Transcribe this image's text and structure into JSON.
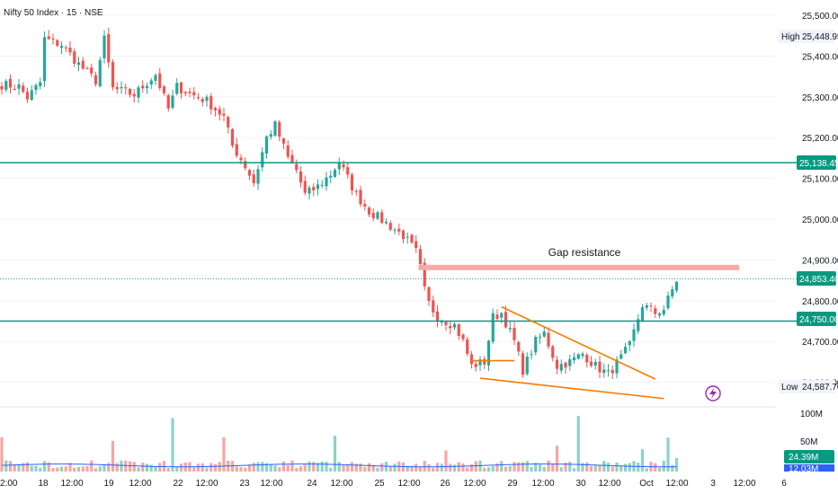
{
  "header": {
    "title": "Nifty 50 Index · 15 · NSE"
  },
  "colors": {
    "up": "#26a69a",
    "down": "#ef5350",
    "level": "#089981",
    "gap_zone": "#f7a9a7",
    "trendline": "#f57c00",
    "vol_ma": "#2962ff",
    "price_tag": "#089981",
    "grid": "#f0f3fa",
    "text": "#131722",
    "bg": "#ffffff",
    "vol_tag": "#089981",
    "vol_tag2": "#2962ff"
  },
  "y_axis": {
    "ticks": [
      "25,500.00",
      "25,400.00",
      "25,300.00",
      "25,200.00",
      "25,100.00",
      "25,000.00",
      "24,900.00",
      "24,800.00",
      "24,700.00",
      "24,600.00"
    ],
    "high_label": "High",
    "high_value": "25,448.95",
    "low_label": "Low",
    "low_value": "24,587.70",
    "level_upper": "25,138.45",
    "level_lower": "24,750.00",
    "current": "24,853.40"
  },
  "volume_axis": {
    "ticks": [
      "100M",
      "50M"
    ],
    "current": "24.39M",
    "ma_value": "12.03M"
  },
  "x_axis": {
    "labels": [
      "2:00",
      "18",
      "12:00",
      "19",
      "12:00",
      "22",
      "12:00",
      "23",
      "12:00",
      "24",
      "12:00",
      "25",
      "12:00",
      "26",
      "12:00",
      "29",
      "12:00",
      "30",
      "12:00",
      "Oct",
      "12:00",
      "3",
      "12:00",
      "6"
    ]
  },
  "annotations": {
    "gap_resistance": "Gap resistance"
  },
  "chart_data": {
    "type": "candlestick",
    "title": "Nifty 50 Index · 15 · NSE",
    "ylim": [
      24560,
      25530
    ],
    "levels": [
      25138.45,
      24750.0
    ],
    "current_price": 24853.4,
    "high": 25448.95,
    "low": 24587.7,
    "gap_zone": [
      24875,
      24888
    ],
    "session_anchors": [
      {
        "bar": 0,
        "price": 25330
      },
      {
        "bar": 4,
        "price": 25325
      },
      {
        "bar": 6,
        "price": 25298
      },
      {
        "bar": 9,
        "price": 25335
      },
      {
        "bar": 10,
        "price": 25442
      },
      {
        "bar": 14,
        "price": 25428
      },
      {
        "bar": 18,
        "price": 25380
      },
      {
        "bar": 22,
        "price": 25340
      },
      {
        "bar": 24,
        "price": 25440
      },
      {
        "bar": 26,
        "price": 25320
      },
      {
        "bar": 31,
        "price": 25305
      },
      {
        "bar": 36,
        "price": 25355
      },
      {
        "bar": 39,
        "price": 25270
      },
      {
        "bar": 41,
        "price": 25325
      },
      {
        "bar": 44,
        "price": 25308
      },
      {
        "bar": 48,
        "price": 25290
      },
      {
        "bar": 52,
        "price": 25250
      },
      {
        "bar": 54,
        "price": 25180
      },
      {
        "bar": 57,
        "price": 25130
      },
      {
        "bar": 59,
        "price": 25090
      },
      {
        "bar": 62,
        "price": 25200
      },
      {
        "bar": 64,
        "price": 25230
      },
      {
        "bar": 67,
        "price": 25150
      },
      {
        "bar": 69,
        "price": 25120
      },
      {
        "bar": 71,
        "price": 25060
      },
      {
        "bar": 74,
        "price": 25080
      },
      {
        "bar": 77,
        "price": 25110
      },
      {
        "bar": 79,
        "price": 25140
      },
      {
        "bar": 83,
        "price": 25060
      },
      {
        "bar": 86,
        "price": 25020
      },
      {
        "bar": 90,
        "price": 24990
      },
      {
        "bar": 94,
        "price": 24960
      },
      {
        "bar": 97,
        "price": 24920
      },
      {
        "bar": 98,
        "price": 24870
      },
      {
        "bar": 99,
        "price": 24810
      },
      {
        "bar": 102,
        "price": 24760
      },
      {
        "bar": 106,
        "price": 24740
      },
      {
        "bar": 108,
        "price": 24700
      },
      {
        "bar": 110,
        "price": 24640
      },
      {
        "bar": 113,
        "price": 24650
      },
      {
        "bar": 115,
        "price": 24760
      },
      {
        "bar": 117,
        "price": 24770
      },
      {
        "bar": 120,
        "price": 24700
      },
      {
        "bar": 122,
        "price": 24630
      },
      {
        "bar": 125,
        "price": 24700
      },
      {
        "bar": 127,
        "price": 24720
      },
      {
        "bar": 130,
        "price": 24640
      },
      {
        "bar": 133,
        "price": 24650
      },
      {
        "bar": 136,
        "price": 24670
      },
      {
        "bar": 139,
        "price": 24640
      },
      {
        "bar": 142,
        "price": 24620
      },
      {
        "bar": 145,
        "price": 24660
      },
      {
        "bar": 147,
        "price": 24690
      },
      {
        "bar": 150,
        "price": 24790
      },
      {
        "bar": 153,
        "price": 24770
      },
      {
        "bar": 155,
        "price": 24780
      },
      {
        "bar": 158,
        "price": 24850
      }
    ],
    "bar_count": 159,
    "volume_ma": 12.03,
    "volume_current": 24.39
  }
}
